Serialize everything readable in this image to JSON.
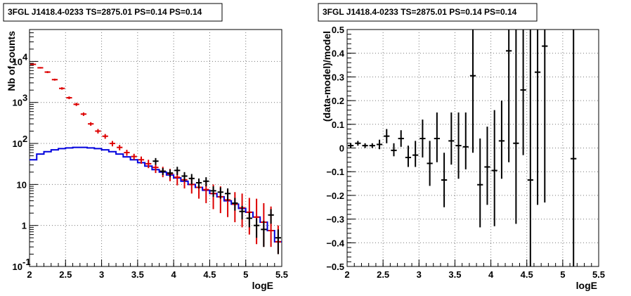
{
  "chart_data": [
    {
      "type": "line",
      "title": "3FGL J1418.4-0233 TS=2875.01 PS=0.14 PS=0.14",
      "xlabel": "logE",
      "ylabel": "Nb of counts",
      "xlim": [
        2,
        5.5
      ],
      "ylim": [
        0.1,
        60000
      ],
      "yscale": "log",
      "grid": true,
      "x_ticks": [
        "2",
        "2.5",
        "3",
        "3.5",
        "4",
        "4.5",
        "5",
        "5.5"
      ],
      "y_ticks": [
        {
          "value": 0.1,
          "label": "10",
          "exp": "-1"
        },
        {
          "value": 1,
          "label": "1",
          "exp": ""
        },
        {
          "value": 10,
          "label": "10",
          "exp": ""
        },
        {
          "value": 100,
          "label": "10",
          "exp": "2"
        },
        {
          "value": 1000,
          "label": "10",
          "exp": "3"
        },
        {
          "value": 10000,
          "label": "10",
          "exp": "4"
        }
      ],
      "bin_width": 0.1,
      "series": [
        {
          "color": "#0000dd",
          "style": "step",
          "x": [
            2.05,
            2.15,
            2.25,
            2.35,
            2.45,
            2.55,
            2.65,
            2.75,
            2.85,
            2.95,
            3.05,
            3.15,
            3.25,
            3.35,
            3.45,
            3.55,
            3.65,
            3.75,
            3.85,
            3.95,
            4.05,
            4.15,
            4.25,
            4.35,
            4.45,
            4.55,
            4.65,
            4.75,
            4.85,
            4.95,
            5.05,
            5.15,
            5.25,
            5.35,
            5.45
          ],
          "y": [
            40,
            55,
            63,
            70,
            75,
            78,
            80,
            80,
            78,
            75,
            70,
            63,
            55,
            47,
            40,
            34,
            28,
            23,
            20,
            17,
            14.5,
            12,
            10,
            8.5,
            7.2,
            6,
            5,
            4,
            3.3,
            2.6,
            2.1,
            1.6,
            1.2,
            0.75,
            0.4
          ]
        },
        {
          "color": "#dd0000",
          "style": "errorbar",
          "x": [
            2.05,
            2.15,
            2.25,
            2.35,
            2.45,
            2.55,
            2.65,
            2.75,
            2.85,
            2.95,
            3.05,
            3.15,
            3.25,
            3.35,
            3.45,
            3.55,
            3.65,
            3.75,
            3.85,
            3.95,
            4.05,
            4.15,
            4.25,
            4.35,
            4.45,
            4.55,
            4.65,
            4.75,
            4.85,
            4.95,
            5.05,
            5.15,
            5.25,
            5.35,
            5.45
          ],
          "y": [
            8500,
            7000,
            5500,
            3600,
            2200,
            1300,
            900,
            520,
            300,
            200,
            150,
            100,
            80,
            60,
            48,
            40,
            32,
            26,
            21,
            18,
            15,
            13,
            10,
            8.5,
            7.5,
            6,
            5,
            4.2,
            3.3,
            2.7,
            2.1,
            1.6,
            1.2,
            0.75,
            0.4
          ],
          "ylo": [
            8200,
            6700,
            5200,
            3400,
            2050,
            1200,
            820,
            470,
            270,
            175,
            130,
            85,
            68,
            50,
            40,
            32,
            25,
            19,
            15,
            12,
            9.5,
            8,
            6,
            4.5,
            3.5,
            2.5,
            2,
            1.6,
            1.2,
            0.9,
            0.6,
            0.35,
            0.3,
            0.3,
            0.2
          ],
          "yhi": [
            8800,
            7300,
            5800,
            3800,
            2350,
            1400,
            980,
            570,
            330,
            225,
            170,
            115,
            92,
            70,
            56,
            48,
            40,
            33,
            27,
            24,
            21,
            18,
            15,
            13,
            12,
            10,
            9,
            8,
            6.5,
            6,
            4.7,
            4.5,
            3.5,
            2.9,
            1
          ]
        },
        {
          "color": "#000000",
          "style": "errorbar",
          "x": [
            3.75,
            3.85,
            3.95,
            4.05,
            4.15,
            4.25,
            4.35,
            4.45,
            4.55,
            4.65,
            4.75,
            4.85,
            4.95,
            5.05,
            5.15,
            5.25,
            5.35,
            5.45
          ],
          "y": [
            37,
            21,
            19,
            22,
            16,
            14,
            11,
            12,
            7,
            6.5,
            6,
            3.5,
            2.2,
            1.5,
            1,
            0.8,
            1.8,
            0.5
          ],
          "ylo": [
            30,
            17,
            15,
            17,
            12,
            10,
            8,
            9,
            5,
            4.5,
            4,
            2.3,
            1.4,
            0.9,
            0.5,
            0.3,
            1.1,
            0.2
          ],
          "yhi": [
            44,
            25,
            23,
            27,
            20,
            18,
            14,
            15,
            9,
            8.5,
            8,
            4.7,
            3,
            2.1,
            1.5,
            1.3,
            2.5,
            0.8
          ]
        }
      ]
    },
    {
      "type": "scatter",
      "title": "3FGL J1418.4-0233 TS=2875.01 PS=0.14 PS=0.14",
      "xlabel": "logE",
      "ylabel": "(data-model)/model",
      "xlim": [
        2,
        5.5
      ],
      "ylim": [
        -0.5,
        0.5
      ],
      "grid": true,
      "x_ticks": [
        "2",
        "2.5",
        "3",
        "3.5",
        "4",
        "4.5",
        "5",
        "5.5"
      ],
      "y_ticks": [
        "-0.5",
        "-0.4",
        "-0.3",
        "-0.2",
        "-0.1",
        "0",
        "0.1",
        "0.2",
        "0.3",
        "0.4",
        "0.5"
      ],
      "bin_width": 0.1,
      "points": {
        "x": [
          2.05,
          2.15,
          2.25,
          2.35,
          2.45,
          2.55,
          2.65,
          2.75,
          2.85,
          2.95,
          3.05,
          3.15,
          3.25,
          3.35,
          3.45,
          3.55,
          3.65,
          3.75,
          3.85,
          3.95,
          4.05,
          4.15,
          4.25,
          4.35,
          4.45,
          4.55,
          4.65,
          4.75,
          5.15
        ],
        "y": [
          0.01,
          0.02,
          0.01,
          0.01,
          0.015,
          0.05,
          -0.01,
          0.04,
          -0.04,
          -0.03,
          0.04,
          -0.065,
          0.04,
          -0.135,
          0.03,
          0.01,
          0.005,
          0.305,
          -0.155,
          -0.08,
          -0.095,
          0.03,
          0.41,
          0.02,
          0.245,
          -0.135,
          0.32,
          0.43,
          -0.045
        ],
        "ylo": [
          0.0,
          0.01,
          0.0,
          0.0,
          -0.005,
          0.02,
          -0.035,
          0.005,
          -0.08,
          -0.08,
          -0.04,
          -0.16,
          -0.06,
          -0.25,
          -0.07,
          -0.13,
          -0.09,
          -0.02,
          -0.335,
          -0.24,
          -0.33,
          -0.13,
          -0.06,
          -0.32,
          -0.03,
          -0.5,
          -0.24,
          -0.23,
          -0.5
        ],
        "yhi": [
          0.02,
          0.03,
          0.02,
          0.02,
          0.035,
          0.08,
          0.02,
          0.075,
          0.01,
          0.03,
          0.12,
          0.03,
          0.15,
          -0.02,
          0.15,
          0.15,
          0.15,
          0.5,
          0.04,
          0.09,
          0.16,
          0.2,
          0.5,
          0.5,
          0.5,
          0.5,
          0.5,
          0.5,
          0.5
        ]
      }
    }
  ]
}
